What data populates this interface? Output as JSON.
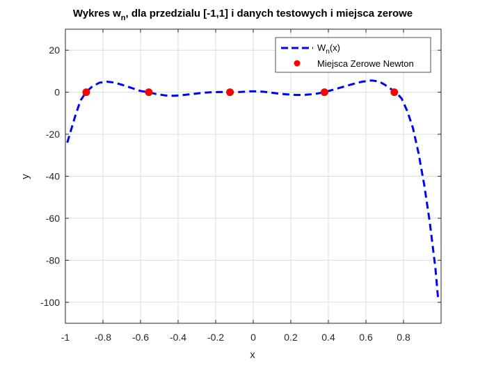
{
  "chart_data": {
    "type": "line",
    "title_main": "Wykres w",
    "title_sub": "n",
    "title_rest": ", dla przedzialu [-1,1] i danych testowych i miejsca zerowe",
    "xlabel": "x",
    "ylabel": "y",
    "xlim": [
      -1,
      1
    ],
    "ylim": [
      -110,
      30
    ],
    "xticks": [
      -1,
      -0.8,
      -0.6,
      -0.4,
      -0.2,
      0,
      0.2,
      0.4,
      0.6,
      0.8
    ],
    "xtick_labels": [
      "-1",
      "-0.8",
      "-0.6",
      "-0.4",
      "-0.2",
      "0",
      "0.2",
      "0.4",
      "0.6",
      "0.8"
    ],
    "yticks": [
      20,
      0,
      -20,
      -40,
      -60,
      -80,
      -100
    ],
    "ytick_labels": [
      "20",
      "0",
      "-20",
      "-40",
      "-60",
      "-80",
      "-100"
    ],
    "grid": true,
    "legend_position": "top-right",
    "series": [
      {
        "name_main": "W",
        "name_sub": "n",
        "name_rest": "(x)",
        "kind": "line",
        "style": "dashed",
        "color": "#0000ff",
        "x": [
          -0.99,
          -0.95,
          -0.92,
          -0.89,
          -0.86,
          -0.82,
          -0.78,
          -0.74,
          -0.7,
          -0.65,
          -0.6,
          -0.56,
          -0.52,
          -0.47,
          -0.42,
          -0.37,
          -0.32,
          -0.27,
          -0.22,
          -0.17,
          -0.12,
          -0.07,
          -0.02,
          0.03,
          0.08,
          0.13,
          0.18,
          0.23,
          0.28,
          0.33,
          0.38,
          0.43,
          0.48,
          0.53,
          0.58,
          0.63,
          0.67,
          0.7,
          0.73,
          0.76,
          0.79,
          0.82,
          0.85,
          0.88,
          0.91,
          0.94,
          0.97,
          0.985
        ],
        "y": [
          -24,
          -12,
          -4,
          0,
          2.5,
          4.5,
          5,
          4.6,
          3.6,
          2.1,
          0.6,
          0,
          -0.8,
          -1.5,
          -1.7,
          -1.3,
          -0.8,
          -0.3,
          0,
          0.1,
          0,
          0.1,
          0.4,
          0.4,
          0,
          -0.6,
          -1,
          -1.3,
          -1.2,
          -0.8,
          0,
          1.3,
          2.6,
          3.9,
          5,
          5.6,
          5.1,
          3.6,
          1.7,
          0,
          -3,
          -9,
          -17,
          -29,
          -44,
          -62,
          -84,
          -99
        ]
      },
      {
        "name": "Miejsca Zerowe Newton",
        "kind": "scatter",
        "color": "#ff0000",
        "x": [
          -0.889,
          -0.556,
          -0.124,
          0.379,
          0.751
        ],
        "y": [
          0,
          0,
          0,
          0,
          0
        ]
      }
    ]
  }
}
